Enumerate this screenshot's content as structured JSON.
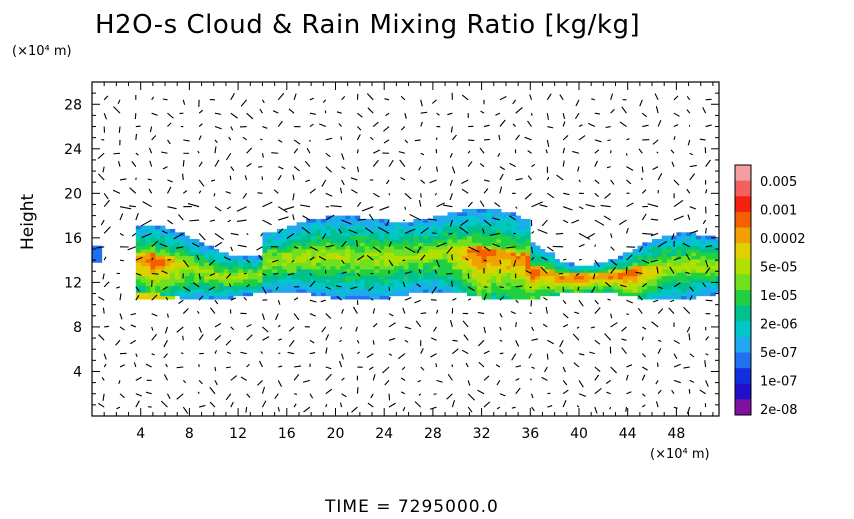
{
  "chart_data": {
    "type": "heatmap",
    "title": "H2O-s Cloud & Rain Mixing Ratio [kg/kg]",
    "ylabel": "Height",
    "y_unit": "(×10⁴ m)",
    "x_unit": "(×10⁴ m)",
    "xlim": [
      0,
      51.5
    ],
    "ylim": [
      0,
      30
    ],
    "x_ticks": [
      4,
      8,
      12,
      16,
      20,
      24,
      28,
      32,
      36,
      40,
      44,
      48
    ],
    "y_ticks": [
      4,
      8,
      12,
      16,
      20,
      24,
      28
    ],
    "colorbar": {
      "labels": [
        "0.005",
        "0.001",
        "0.0002",
        "5e-05",
        "1e-05",
        "2e-06",
        "5e-07",
        "1e-07",
        "2e-08"
      ],
      "colors": [
        "#f4a0a0",
        "#f46060",
        "#f42010",
        "#f46000",
        "#f0a000",
        "#e0d000",
        "#b0e000",
        "#70e020",
        "#20d040",
        "#00c090",
        "#00c8c8",
        "#20a8f0",
        "#2070f0",
        "#1030e0",
        "#2010c8",
        "#8010a0"
      ]
    },
    "cloud_band": {
      "base": 10.8,
      "top_range": [
        14.5,
        19.2
      ],
      "x_range": [
        0,
        51.5
      ],
      "peak_regions_x": [
        5,
        32,
        36,
        40,
        44
      ]
    },
    "vectors": "wind field arrows",
    "time": "TIME = 7295000.0"
  }
}
